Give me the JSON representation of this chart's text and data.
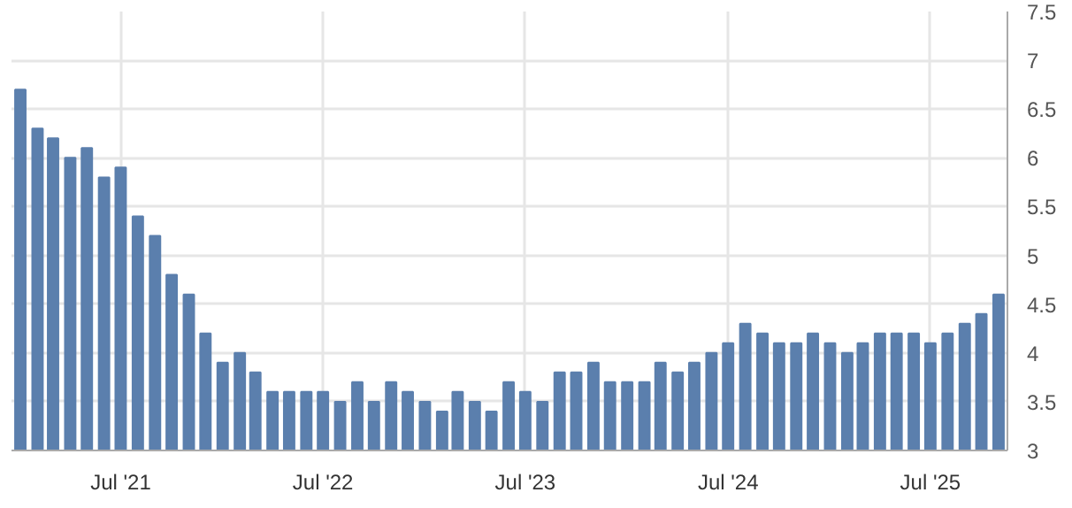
{
  "chart_data": {
    "type": "bar",
    "x": [
      "2021-01",
      "2021-02",
      "2021-03",
      "2021-04",
      "2021-05",
      "2021-06",
      "2021-07",
      "2021-08",
      "2021-09",
      "2021-10",
      "2021-11",
      "2021-12",
      "2022-01",
      "2022-02",
      "2022-03",
      "2022-04",
      "2022-05",
      "2022-06",
      "2022-07",
      "2022-08",
      "2022-09",
      "2022-10",
      "2022-11",
      "2022-12",
      "2023-01",
      "2023-02",
      "2023-03",
      "2023-04",
      "2023-05",
      "2023-06",
      "2023-07",
      "2023-08",
      "2023-09",
      "2023-10",
      "2023-11",
      "2023-12",
      "2024-01",
      "2024-02",
      "2024-03",
      "2024-04",
      "2024-05",
      "2024-06",
      "2024-07",
      "2024-08",
      "2024-09",
      "2024-10",
      "2024-11",
      "2024-12",
      "2025-01",
      "2025-02",
      "2025-03",
      "2025-04",
      "2025-05",
      "2025-06",
      "2025-07",
      "2025-08",
      "2025-09",
      "2025-10",
      "2025-11"
    ],
    "values": [
      6.7,
      6.3,
      6.2,
      6.0,
      6.1,
      5.8,
      5.9,
      5.4,
      5.2,
      4.8,
      4.6,
      4.2,
      3.9,
      4.0,
      3.8,
      3.6,
      3.6,
      3.6,
      3.6,
      3.5,
      3.7,
      3.5,
      3.7,
      3.6,
      3.5,
      3.4,
      3.6,
      3.5,
      3.4,
      3.7,
      3.6,
      3.5,
      3.8,
      3.8,
      3.9,
      3.7,
      3.7,
      3.7,
      3.9,
      3.8,
      3.9,
      4.0,
      4.1,
      4.3,
      4.2,
      4.1,
      4.1,
      4.2,
      4.1,
      4.0,
      4.1,
      4.2,
      4.2,
      4.2,
      4.1,
      4.2,
      4.3,
      4.4,
      4.6
    ],
    "color": "#5b7fad",
    "xlim": [
      "2020-12-16",
      "2025-11-17"
    ],
    "xticks": [
      {
        "value": "2021-07",
        "label": "Jul '21"
      },
      {
        "value": "2022-07",
        "label": "Jul '22"
      },
      {
        "value": "2023-07",
        "label": "Jul '23"
      },
      {
        "value": "2024-07",
        "label": "Jul '24"
      },
      {
        "value": "2025-07",
        "label": "Jul '25"
      }
    ],
    "ylim": [
      3,
      7.5
    ],
    "yticks": [
      3,
      3.5,
      4,
      4.5,
      5,
      5.5,
      6,
      6.5,
      7,
      7.5
    ],
    "grid": true
  }
}
